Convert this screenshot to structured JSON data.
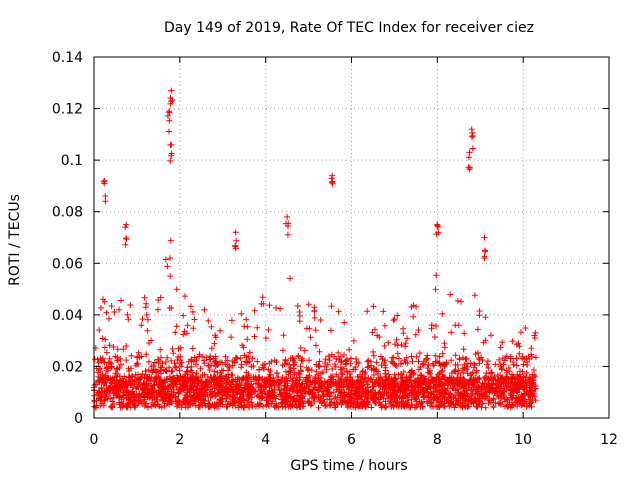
{
  "chart_data": {
    "type": "scatter",
    "title": "Day 149 of 2019, Rate Of TEC Index for receiver ciez",
    "xlabel": "GPS time / hours",
    "ylabel": "ROTI / TECUs",
    "xlim": [
      0,
      12
    ],
    "ylim": [
      0,
      0.14
    ],
    "x_ticks": [
      0,
      2,
      4,
      6,
      8,
      10,
      12
    ],
    "x_tick_labels": [
      "0",
      "2",
      "4",
      "6",
      "8",
      "10",
      "12"
    ],
    "y_ticks": [
      0,
      0.02,
      0.04,
      0.06,
      0.08,
      0.1,
      0.12,
      0.14
    ],
    "y_tick_labels": [
      "0",
      "0.02",
      "0.04",
      "0.06",
      "0.08",
      "0.1",
      "0.12",
      "0.14"
    ],
    "grid": true,
    "marker": "+",
    "series_color": "#ff0000",
    "data_x_range": [
      0.0,
      10.3
    ],
    "notable_points": [
      {
        "x": 1.8,
        "y": 0.127
      },
      {
        "x": 1.75,
        "y": 0.119
      },
      {
        "x": 1.8,
        "y": 0.106
      },
      {
        "x": 0.25,
        "y": 0.092
      },
      {
        "x": 5.55,
        "y": 0.094
      },
      {
        "x": 8.8,
        "y": 0.112
      },
      {
        "x": 8.75,
        "y": 0.103
      },
      {
        "x": 4.5,
        "y": 0.078
      },
      {
        "x": 3.3,
        "y": 0.072
      },
      {
        "x": 8.0,
        "y": 0.075
      },
      {
        "x": 9.1,
        "y": 0.07
      },
      {
        "x": 0.75,
        "y": 0.075
      }
    ],
    "envelope": [
      {
        "x": 0.0,
        "upper": 0.045
      },
      {
        "x": 0.5,
        "upper": 0.05
      },
      {
        "x": 1.0,
        "upper": 0.045
      },
      {
        "x": 1.5,
        "upper": 0.058
      },
      {
        "x": 1.8,
        "upper": 0.08
      },
      {
        "x": 2.0,
        "upper": 0.05
      },
      {
        "x": 2.5,
        "upper": 0.045
      },
      {
        "x": 3.0,
        "upper": 0.04
      },
      {
        "x": 3.5,
        "upper": 0.042
      },
      {
        "x": 4.0,
        "upper": 0.05
      },
      {
        "x": 4.5,
        "upper": 0.055
      },
      {
        "x": 5.0,
        "upper": 0.05
      },
      {
        "x": 5.5,
        "upper": 0.048
      },
      {
        "x": 6.0,
        "upper": 0.035
      },
      {
        "x": 6.5,
        "upper": 0.045
      },
      {
        "x": 7.0,
        "upper": 0.04
      },
      {
        "x": 7.5,
        "upper": 0.045
      },
      {
        "x": 8.0,
        "upper": 0.06
      },
      {
        "x": 8.5,
        "upper": 0.045
      },
      {
        "x": 9.0,
        "upper": 0.05
      },
      {
        "x": 9.5,
        "upper": 0.03
      },
      {
        "x": 10.0,
        "upper": 0.035
      },
      {
        "x": 10.3,
        "upper": 0.035
      }
    ]
  }
}
